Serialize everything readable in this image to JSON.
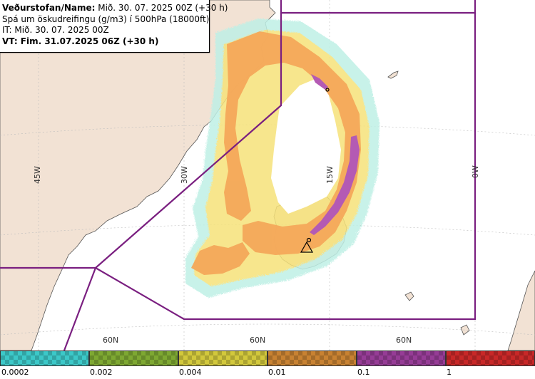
{
  "header": {
    "line1_label": "Veðurstofan/Name:",
    "line1_value": "Mið. 30. 07. 2025 00Z (+30 h)",
    "line2": "Spá um öskudreifingu (g/m3) í 500hPa (18000ft)",
    "line3": "IT: Mið. 30. 07. 2025 00Z",
    "line4": "VT: Fim. 31.07.2025 06Z (+30 h)"
  },
  "map": {
    "meridian_labels": [
      "45W",
      "30W",
      "15W",
      "0W"
    ],
    "parallel_labels": [
      "60N",
      "60N",
      "60N"
    ]
  },
  "legend": {
    "bins": [
      {
        "label": "0.0002",
        "color": "#3cc8c8"
      },
      {
        "label": "0.002",
        "color": "#7ea832"
      },
      {
        "label": "0.004",
        "color": "#d2c83c"
      },
      {
        "label": "0.01",
        "color": "#c88232"
      },
      {
        "label": "0.1",
        "color": "#963c96"
      },
      {
        "label": "1",
        "color": "#c82828"
      }
    ]
  },
  "colors": {
    "land": "#f2e2d4",
    "sea": "#ffffff",
    "ash_light": "#f6e27a",
    "ash_orange": "#f4a85a",
    "ash_purple": "#b45ab4",
    "boundary": "#7a1f80",
    "grid": "#bdbdbd"
  }
}
